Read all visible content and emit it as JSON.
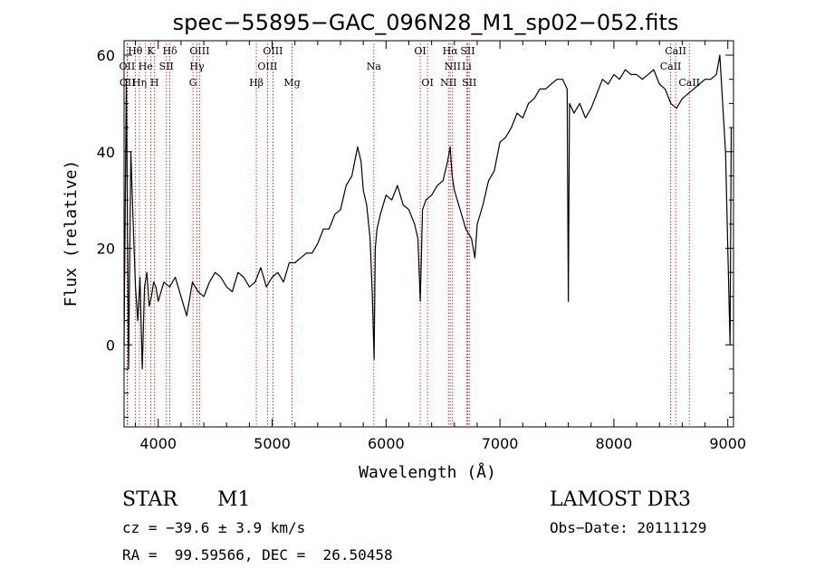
{
  "chart_data": {
    "type": "line",
    "title": "spec−55895−GAC_096N28_M1_sp02−052.fits",
    "xlabel": "Wavelength (Å)",
    "ylabel": "Flux (relative)",
    "xlim": [
      3700,
      9050
    ],
    "ylim": [
      -17,
      63
    ],
    "xticks": [
      4000,
      5000,
      6000,
      7000,
      8000,
      9000
    ],
    "yticks": [
      0,
      20,
      40,
      60
    ],
    "grid": false,
    "series": [
      {
        "color": "#000000",
        "x": [
          3700,
          3720,
          3740,
          3760,
          3780,
          3800,
          3820,
          3840,
          3860,
          3880,
          3900,
          3920,
          3940,
          3960,
          3980,
          4000,
          4050,
          4100,
          4150,
          4200,
          4250,
          4300,
          4350,
          4400,
          4450,
          4500,
          4550,
          4600,
          4650,
          4700,
          4750,
          4800,
          4850,
          4900,
          4950,
          5000,
          5050,
          5100,
          5150,
          5200,
          5250,
          5300,
          5350,
          5400,
          5450,
          5500,
          5550,
          5600,
          5650,
          5700,
          5750,
          5780,
          5800,
          5830,
          5860,
          5880,
          5895,
          5905,
          5920,
          5950,
          6000,
          6050,
          6100,
          6150,
          6200,
          6250,
          6280,
          6300,
          6320,
          6350,
          6400,
          6450,
          6500,
          6540,
          6563,
          6580,
          6600,
          6650,
          6700,
          6750,
          6780,
          6800,
          6850,
          6900,
          6950,
          7000,
          7050,
          7100,
          7150,
          7200,
          7250,
          7300,
          7350,
          7400,
          7450,
          7500,
          7550,
          7590,
          7600,
          7610,
          7650,
          7700,
          7750,
          7800,
          7850,
          7900,
          7950,
          8000,
          8050,
          8100,
          8150,
          8200,
          8250,
          8300,
          8350,
          8400,
          8450,
          8500,
          8550,
          8600,
          8650,
          8700,
          8750,
          8800,
          8850,
          8900,
          8930,
          8950,
          8980,
          9000,
          9020,
          9030
        ],
        "y": [
          0,
          55,
          -5,
          40,
          25,
          12,
          5,
          14,
          -5,
          12,
          15,
          8,
          10,
          13,
          12,
          9,
          13,
          12,
          14,
          10,
          6,
          13,
          11,
          10,
          13,
          15,
          14,
          12,
          11,
          15,
          14,
          12,
          13,
          16,
          12,
          14,
          15,
          13,
          17,
          17,
          18,
          19,
          19,
          21,
          24,
          24,
          27,
          28,
          33,
          35,
          41,
          38,
          32,
          29,
          22,
          10,
          -3,
          20,
          24,
          27,
          31,
          30,
          33,
          29,
          28,
          25,
          22,
          9,
          28,
          30,
          31,
          33,
          34,
          38,
          41,
          35,
          32,
          28,
          24,
          22,
          18,
          25,
          29,
          34,
          36,
          42,
          43,
          45,
          48,
          47,
          50,
          51,
          53,
          53,
          54,
          55,
          55,
          53,
          9,
          50,
          48,
          50,
          47,
          49,
          52,
          55,
          54,
          56,
          55,
          57,
          56,
          56,
          55,
          56,
          57,
          54,
          53,
          50,
          49,
          51,
          52,
          53,
          54,
          55,
          55,
          56,
          60,
          52,
          40,
          20,
          0,
          45
        ]
      }
    ],
    "emission_lines": [
      {
        "label": "Hθ",
        "wl": 3798,
        "row": 0
      },
      {
        "label": "K",
        "wl": 3934,
        "row": 0
      },
      {
        "label": "Hδ",
        "wl": 4102,
        "row": 0
      },
      {
        "label": "OIII",
        "wl": 4363,
        "row": 0
      },
      {
        "label": "OIII",
        "wl": 5007,
        "row": 0
      },
      {
        "label": "OI",
        "wl": 6300,
        "row": 0
      },
      {
        "label": "Hα",
        "wl": 6563,
        "row": 0
      },
      {
        "label": "SII",
        "wl": 6717,
        "row": 0
      },
      {
        "label": "CaII",
        "wl": 8542,
        "row": 0
      },
      {
        "label": "OII",
        "wl": 3727,
        "row": 1
      },
      {
        "label": "He",
        "wl": 3889,
        "row": 1
      },
      {
        "label": "SII",
        "wl": 4072,
        "row": 1
      },
      {
        "label": "Hγ",
        "wl": 4340,
        "row": 1
      },
      {
        "label": "OIII",
        "wl": 4959,
        "row": 1
      },
      {
        "label": "Na",
        "wl": 5893,
        "row": 1
      },
      {
        "label": "NII",
        "wl": 6584,
        "row": 1
      },
      {
        "label": "Li",
        "wl": 6708,
        "row": 1
      },
      {
        "label": "CaII",
        "wl": 8498,
        "row": 1
      },
      {
        "label": "OII",
        "wl": 3730,
        "row": 2
      },
      {
        "label": "Hη",
        "wl": 3835,
        "row": 2
      },
      {
        "label": "H",
        "wl": 3968,
        "row": 2
      },
      {
        "label": "G",
        "wl": 4305,
        "row": 2
      },
      {
        "label": "Hβ",
        "wl": 4861,
        "row": 2
      },
      {
        "label": "Mg",
        "wl": 5175,
        "row": 2
      },
      {
        "label": "OI",
        "wl": 6364,
        "row": 2
      },
      {
        "label": "NII",
        "wl": 6548,
        "row": 2
      },
      {
        "label": "SII",
        "wl": 6731,
        "row": 2
      },
      {
        "label": "CaII",
        "wl": 8662,
        "row": 2
      }
    ]
  },
  "info": {
    "object_type": "STAR",
    "subclass": "M1",
    "survey": "LAMOST DR3",
    "cz": "cz = −39.6 ± 3.9 km/s",
    "obs_date": "Obs−Date: 20111129",
    "radec": "RA =  99.59566, DEC =  26.50458"
  },
  "colors": {
    "spectrum": "#000000",
    "line_markers": "#cc0000"
  }
}
